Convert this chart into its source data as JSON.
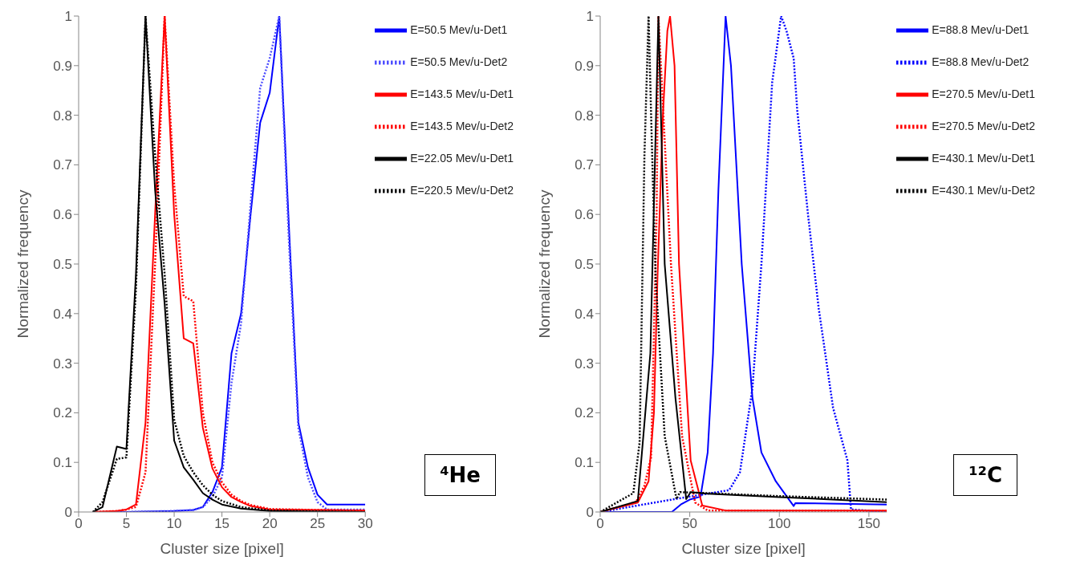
{
  "chart_data": [
    {
      "type": "line",
      "xlabel": "Cluster size [pixel]",
      "ylabel": "Normalized frequency",
      "annotations": [
        "⁴He"
      ],
      "xlim": [
        0,
        30
      ],
      "xticks": [
        0,
        5,
        10,
        15,
        20,
        25,
        30
      ],
      "ylim": [
        0,
        1
      ],
      "yticks": [
        0,
        0.1,
        0.2,
        0.3,
        0.4,
        0.5,
        0.6,
        0.7,
        0.8,
        0.9,
        1
      ],
      "legend": "top right",
      "marker": "none",
      "series": [
        {
          "name": "E=50.5 Mev/u-Det1",
          "color": "#0000ff",
          "line_style": "solid",
          "x": [
            1.5,
            5,
            10,
            12,
            13,
            14,
            15,
            16,
            17,
            18,
            19,
            20,
            21,
            22,
            23,
            24,
            25,
            26,
            30
          ],
          "values": [
            0,
            0,
            0.002,
            0.004,
            0.01,
            0.04,
            0.09,
            0.32,
            0.4,
            0.6,
            0.785,
            0.845,
            1,
            0.58,
            0.18,
            0.09,
            0.035,
            0.015,
            0.015
          ]
        },
        {
          "name": "E=50.5 Mev/u-Det2",
          "color": "#4d4dff",
          "line_style": "dotted",
          "x": [
            1.5,
            5,
            10,
            12,
            13,
            14,
            15,
            16,
            17,
            18,
            19,
            20,
            21,
            22,
            23,
            24,
            25,
            26,
            30
          ],
          "values": [
            0,
            0,
            0.002,
            0.004,
            0.01,
            0.03,
            0.07,
            0.26,
            0.38,
            0.62,
            0.855,
            0.915,
            1,
            0.55,
            0.17,
            0.07,
            0.02,
            0.005,
            0.005
          ]
        },
        {
          "name": "E=143.5 Mev/u-Det1",
          "color": "#ff0000",
          "line_style": "solid",
          "x": [
            1.5,
            4,
            5,
            6,
            7,
            8,
            9,
            10,
            11,
            12,
            13,
            14,
            15,
            16,
            17,
            18,
            20,
            25,
            30
          ],
          "values": [
            0,
            0.002,
            0.005,
            0.015,
            0.18,
            0.6,
            1,
            0.6,
            0.35,
            0.34,
            0.17,
            0.088,
            0.05,
            0.03,
            0.02,
            0.012,
            0.005,
            0.004,
            0.003
          ]
        },
        {
          "name": "E=143.5 Mev/u-Det2",
          "color": "#ff0000",
          "line_style": "dotted",
          "x": [
            1.5,
            4,
            5,
            6,
            7,
            8,
            9,
            10,
            11,
            12,
            13,
            14,
            15,
            16,
            17,
            18,
            20,
            25,
            30
          ],
          "values": [
            0,
            0.002,
            0.005,
            0.01,
            0.08,
            0.5,
            1,
            0.66,
            0.435,
            0.425,
            0.2,
            0.1,
            0.06,
            0.035,
            0.022,
            0.014,
            0.006,
            0.004,
            0.003
          ]
        },
        {
          "name": "E=22.05 Mev/u-Det1",
          "color": "#000000",
          "line_style": "solid",
          "x": [
            1.5,
            2.5,
            4,
            5,
            6,
            7,
            8,
            9,
            10,
            11,
            12,
            13,
            14,
            15,
            17,
            20,
            25,
            30
          ],
          "values": [
            0,
            0.01,
            0.132,
            0.127,
            0.48,
            1,
            0.65,
            0.42,
            0.144,
            0.09,
            0.065,
            0.038,
            0.025,
            0.015,
            0.007,
            0.002,
            0.001,
            0
          ]
        },
        {
          "name": "E=220.5 Mev/u-Det2",
          "color": "#000000",
          "line_style": "dotted",
          "x": [
            1.5,
            2.5,
            4,
            5,
            6,
            7,
            8,
            9,
            10,
            11,
            12,
            13,
            14,
            15,
            17,
            20,
            25,
            30
          ],
          "values": [
            0,
            0.02,
            0.107,
            0.11,
            0.45,
            1,
            0.72,
            0.48,
            0.186,
            0.113,
            0.08,
            0.054,
            0.035,
            0.022,
            0.01,
            0.003,
            0.001,
            0
          ]
        }
      ]
    },
    {
      "type": "line",
      "xlabel": "Cluster size [pixel]",
      "ylabel": "Normalized frequency",
      "annotations": [
        "¹²C"
      ],
      "xlim": [
        0,
        160
      ],
      "xticks": [
        0,
        50,
        100,
        150
      ],
      "ylim": [
        0,
        1
      ],
      "yticks": [
        0,
        0.1,
        0.2,
        0.3,
        0.4,
        0.5,
        0.6,
        0.7,
        0.8,
        0.9,
        1
      ],
      "legend": "top right",
      "marker": "none",
      "series": [
        {
          "name": "E=88.8 Mev/u-Det1",
          "color": "#0000ff",
          "line_style": "solid",
          "x": [
            0,
            40,
            45,
            50,
            56,
            60,
            63,
            66,
            70,
            73,
            79,
            85,
            90,
            98,
            108,
            109,
            160
          ],
          "values": [
            0,
            0,
            0.015,
            0.025,
            0.031,
            0.12,
            0.32,
            0.65,
            1,
            0.9,
            0.5,
            0.23,
            0.12,
            0.062,
            0.012,
            0.018,
            0.015
          ]
        },
        {
          "name": "E=88.8 Mev/u-Det2",
          "color": "#0000ff",
          "line_style": "dotted",
          "x": [
            0,
            40,
            72,
            78,
            85,
            90,
            96,
            101,
            104,
            108,
            110,
            116,
            122,
            130,
            138,
            140,
            160
          ],
          "values": [
            0,
            0.025,
            0.044,
            0.08,
            0.25,
            0.5,
            0.866,
            1,
            0.97,
            0.915,
            0.81,
            0.6,
            0.41,
            0.21,
            0.104,
            0.005,
            0
          ]
        },
        {
          "name": "E=270.5 Mev/u-Det1",
          "color": "#ff0000",
          "line_style": "solid",
          "x": [
            0,
            21,
            27,
            30,
            32,
            35,
            37.5,
            39,
            41.5,
            44,
            50.5,
            57,
            70,
            160
          ],
          "values": [
            0,
            0.019,
            0.062,
            0.2,
            0.474,
            0.8,
            0.97,
            1,
            0.9,
            0.5,
            0.104,
            0.013,
            0.003,
            0.003
          ]
        },
        {
          "name": "E=270.5 Mev/u-Det2",
          "color": "#ff0000",
          "line_style": "dotted",
          "x": [
            0,
            20,
            24.7,
            28.4,
            31.5,
            32.5,
            34.6,
            36.4,
            39.5,
            45.7,
            53,
            60,
            160
          ],
          "values": [
            0,
            0.02,
            0.053,
            0.11,
            0.6,
            1,
            0.85,
            0.72,
            0.5,
            0.153,
            0.019,
            0.003,
            0.002
          ]
        },
        {
          "name": "E=430.1 Mev/u-Det1",
          "color": "#000000",
          "line_style": "solid",
          "x": [
            0,
            21,
            28,
            32.5,
            36,
            42,
            48,
            50.5,
            60,
            100,
            160
          ],
          "values": [
            0,
            0.022,
            0.32,
            1,
            0.5,
            0.23,
            0.026,
            0.04,
            0.037,
            0.03,
            0.02
          ]
        },
        {
          "name": "E=430.1 Mev/u-Det2",
          "color": "#000000",
          "line_style": "dotted",
          "x": [
            0,
            18.5,
            22,
            24.7,
            27,
            29,
            31,
            36,
            42.6,
            44.5,
            60,
            100,
            160
          ],
          "values": [
            0,
            0.038,
            0.14,
            0.72,
            1,
            0.72,
            0.47,
            0.153,
            0.026,
            0.04,
            0.038,
            0.032,
            0.025
          ]
        }
      ]
    }
  ]
}
